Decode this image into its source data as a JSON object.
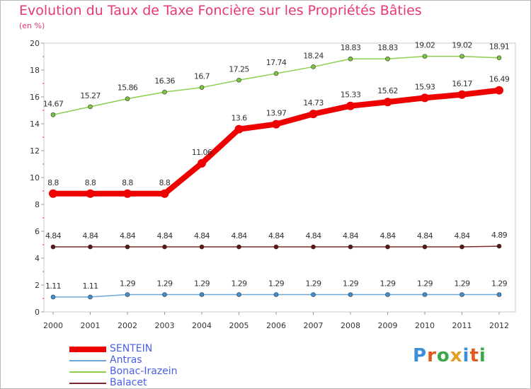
{
  "chart_data": {
    "type": "line",
    "title": "Evolution du Taux de Taxe Foncière sur les Propriétés Bâties",
    "subtitle": "(en %)",
    "x": [
      "2000",
      "2001",
      "2002",
      "2003",
      "2004",
      "2005",
      "2006",
      "2007",
      "2008",
      "2009",
      "2010",
      "2011",
      "2012"
    ],
    "ylim": [
      0,
      20
    ],
    "yticks": [
      "0",
      "2",
      "4",
      "6",
      "8",
      "10",
      "12",
      "14",
      "16",
      "18",
      "20"
    ],
    "series": [
      {
        "name": "Bonac-Irazein",
        "color": "#8ccf4f",
        "marker": "#7cc63d",
        "width": 1.5,
        "dot": 3,
        "values": [
          14.67,
          15.27,
          15.86,
          16.36,
          16.7,
          17.25,
          17.74,
          18.24,
          18.83,
          18.83,
          19.02,
          19.02,
          18.91
        ],
        "labels": [
          "14.67",
          "15.27",
          "15.86",
          "16.36",
          "16.7",
          "17.25",
          "17.74",
          "18.24",
          "18.83",
          "18.83",
          "19.02",
          "19.02",
          "18.91"
        ]
      },
      {
        "name": "Balacet",
        "color": "#7a2a2a",
        "marker": "#5c1414",
        "width": 1.5,
        "dot": 3,
        "values": [
          4.84,
          4.84,
          4.84,
          4.84,
          4.84,
          4.84,
          4.84,
          4.84,
          4.84,
          4.84,
          4.84,
          4.84,
          4.89
        ],
        "labels": [
          "4.84",
          "4.84",
          "4.84",
          "4.84",
          "4.84",
          "4.84",
          "4.84",
          "4.84",
          "4.84",
          "4.84",
          "4.84",
          "4.84",
          "4.89"
        ]
      },
      {
        "name": "Antras",
        "color": "#6ea7d6",
        "marker": "#3f8ed0",
        "width": 1.5,
        "dot": 3,
        "values": [
          1.11,
          1.11,
          1.29,
          1.29,
          1.29,
          1.29,
          1.29,
          1.29,
          1.29,
          1.29,
          1.29,
          1.29,
          1.29
        ],
        "labels": [
          "1.11",
          "1.11",
          "1.29",
          "1.29",
          "1.29",
          "1.29",
          "1.29",
          "1.29",
          "1.29",
          "1.29",
          "1.29",
          "1.29",
          "1.29"
        ]
      },
      {
        "name": "SENTEIN",
        "color": "#ee0000",
        "marker": "#ee0000",
        "width": 8,
        "dot": 6,
        "values": [
          8.8,
          8.8,
          8.8,
          8.8,
          11.06,
          13.6,
          13.97,
          14.73,
          15.33,
          15.62,
          15.93,
          16.17,
          16.49
        ],
        "labels": [
          "8.8",
          "8.8",
          "8.8",
          "8.8",
          "11.06",
          "13.6",
          "13.97",
          "14.73",
          "15.33",
          "15.62",
          "15.93",
          "16.17",
          "16.49"
        ]
      }
    ],
    "legend": [
      {
        "name": "SENTEIN",
        "color": "#ee0000",
        "width": 8
      },
      {
        "name": "Antras",
        "color": "#6ea7d6",
        "width": 2
      },
      {
        "name": "Bonac-Irazein",
        "color": "#8ccf4f",
        "width": 2
      },
      {
        "name": "Balacet",
        "color": "#7a2a2a",
        "width": 2
      }
    ],
    "legend_position": "bottom-left"
  },
  "logo": {
    "letters": [
      "P",
      "r",
      "o",
      "x",
      "i",
      "t",
      "i"
    ],
    "colors": [
      "#3a8fd8",
      "#e05a1e",
      "#3aa848",
      "#e0a21e",
      "#3a8fd8",
      "#e05a1e",
      "#3aa848"
    ]
  }
}
